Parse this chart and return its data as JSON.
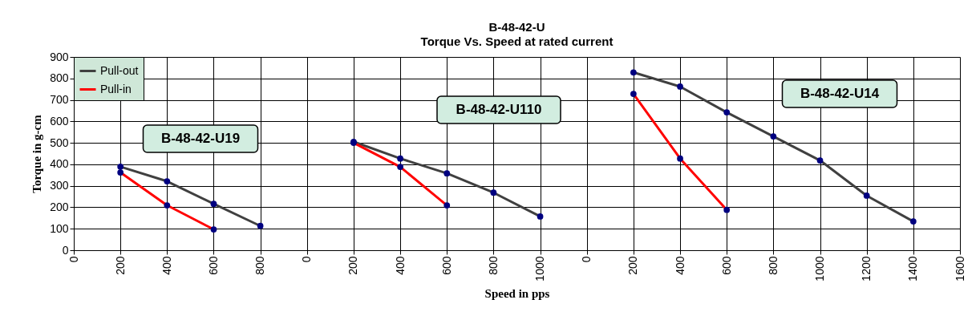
{
  "chart_data": {
    "type": "line",
    "title": "B-48-42-U",
    "subtitle": "Torque Vs. Speed at rated current",
    "xlabel": "Speed in pps",
    "ylabel": "Torque in g-cm",
    "categories": [
      "0",
      "200",
      "400",
      "600",
      "800",
      "0",
      "200",
      "400",
      "600",
      "800",
      "1000",
      "0",
      "200",
      "400",
      "600",
      "800",
      "1000",
      "1200",
      "1400",
      "1600"
    ],
    "series": [
      {
        "name": "Pull-out",
        "color": "#404040",
        "values": [
          null,
          389,
          321,
          216,
          113,
          null,
          505,
          427,
          358,
          268,
          157,
          null,
          828,
          762,
          642,
          530,
          418,
          254,
          134,
          null
        ]
      },
      {
        "name": "Pull-in",
        "color": "#ff0000",
        "values": [
          null,
          362,
          209,
          97,
          null,
          null,
          500,
          388,
          209,
          null,
          null,
          null,
          728,
          427,
          188,
          null,
          null,
          null,
          null,
          null
        ]
      }
    ],
    "ylim": [
      0,
      900
    ],
    "yticks": [
      0,
      100,
      200,
      300,
      400,
      500,
      600,
      700,
      800,
      900
    ],
    "grid": true,
    "legend": "top left",
    "marker": "circle",
    "line_style": "solid",
    "annotations": [
      "B-48-42-U19",
      "B-48-42-U110",
      "B-48-42-U14"
    ]
  }
}
